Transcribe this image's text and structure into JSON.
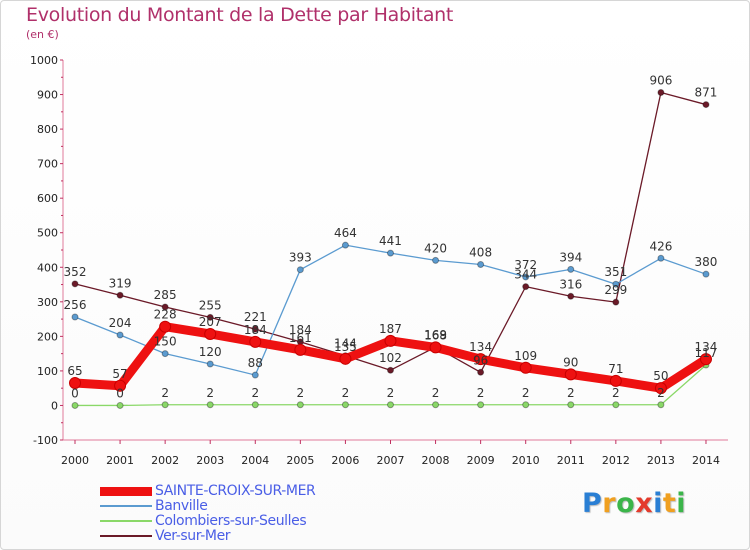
{
  "title": "Evolution du Montant de la Dette par Habitant",
  "unit": "(en €)",
  "logo": "Proxiti",
  "chart_data": {
    "type": "line",
    "title": "Evolution du Montant de la Dette par Habitant",
    "ylabel": "(en €)",
    "xlabel": "",
    "x": [
      "2000",
      "2001",
      "2002",
      "2003",
      "2004",
      "2005",
      "2006",
      "2007",
      "2008",
      "2009",
      "2010",
      "2011",
      "2012",
      "2013",
      "2014"
    ],
    "ylim": [
      -100,
      1000
    ],
    "yticks": [
      "-100",
      "0",
      "100",
      "200",
      "300",
      "400",
      "500",
      "600",
      "700",
      "800",
      "900",
      "1000"
    ],
    "grid": false,
    "legend_position": "bottom-left",
    "series": [
      {
        "name": "Ver-sur-Mer",
        "color": "#6b1a28",
        "values": [
          352,
          319,
          285,
          255,
          221,
          184,
          144,
          102,
          169,
          96,
          344,
          316,
          299,
          906,
          871
        ],
        "labels": [
          "352",
          "319",
          "285",
          "255",
          "221",
          "184",
          "144",
          "102",
          "169",
          "96",
          "344",
          "316",
          "299",
          "906",
          "871"
        ]
      },
      {
        "name": "Banville",
        "color": "#5b9bd0",
        "values": [
          256,
          204,
          150,
          120,
          88,
          393,
          464,
          441,
          420,
          408,
          372,
          394,
          351,
          426,
          380
        ],
        "labels": [
          "256",
          "204",
          "150",
          "120",
          "88",
          "393",
          "464",
          "441",
          "420",
          "408",
          "372",
          "394",
          "351",
          "426",
          "380"
        ]
      },
      {
        "name": "Colombiers-sur-Seulles",
        "color": "#8ad868",
        "values": [
          0,
          0,
          2,
          2,
          2,
          2,
          2,
          2,
          2,
          2,
          2,
          2,
          2,
          2,
          117
        ],
        "labels": [
          "0",
          "0",
          "2",
          "2",
          "2",
          "2",
          "2",
          "2",
          "2",
          "2",
          "2",
          "2",
          "2",
          "2",
          "117"
        ]
      },
      {
        "name": "SAINTE-CROIX-SUR-MER",
        "color": "#ee1111",
        "values": [
          65,
          57,
          228,
          207,
          184,
          161,
          135,
          187,
          168,
          134,
          109,
          90,
          71,
          50,
          134
        ],
        "labels": [
          "65",
          "57",
          "228",
          "207",
          "184",
          "161",
          "135",
          "187",
          "168",
          "134",
          "109",
          "90",
          "71",
          "50",
          "134"
        ]
      }
    ]
  },
  "legend": [
    {
      "name": "SAINTE-CROIX-SUR-MER",
      "color": "#ee1111",
      "thickness": 9
    },
    {
      "name": "Banville",
      "color": "#5b9bd0",
      "thickness": 2
    },
    {
      "name": "Colombiers-sur-Seulles",
      "color": "#8ad868",
      "thickness": 2
    },
    {
      "name": "Ver-sur-Mer",
      "color": "#6b1a28",
      "thickness": 2
    }
  ]
}
